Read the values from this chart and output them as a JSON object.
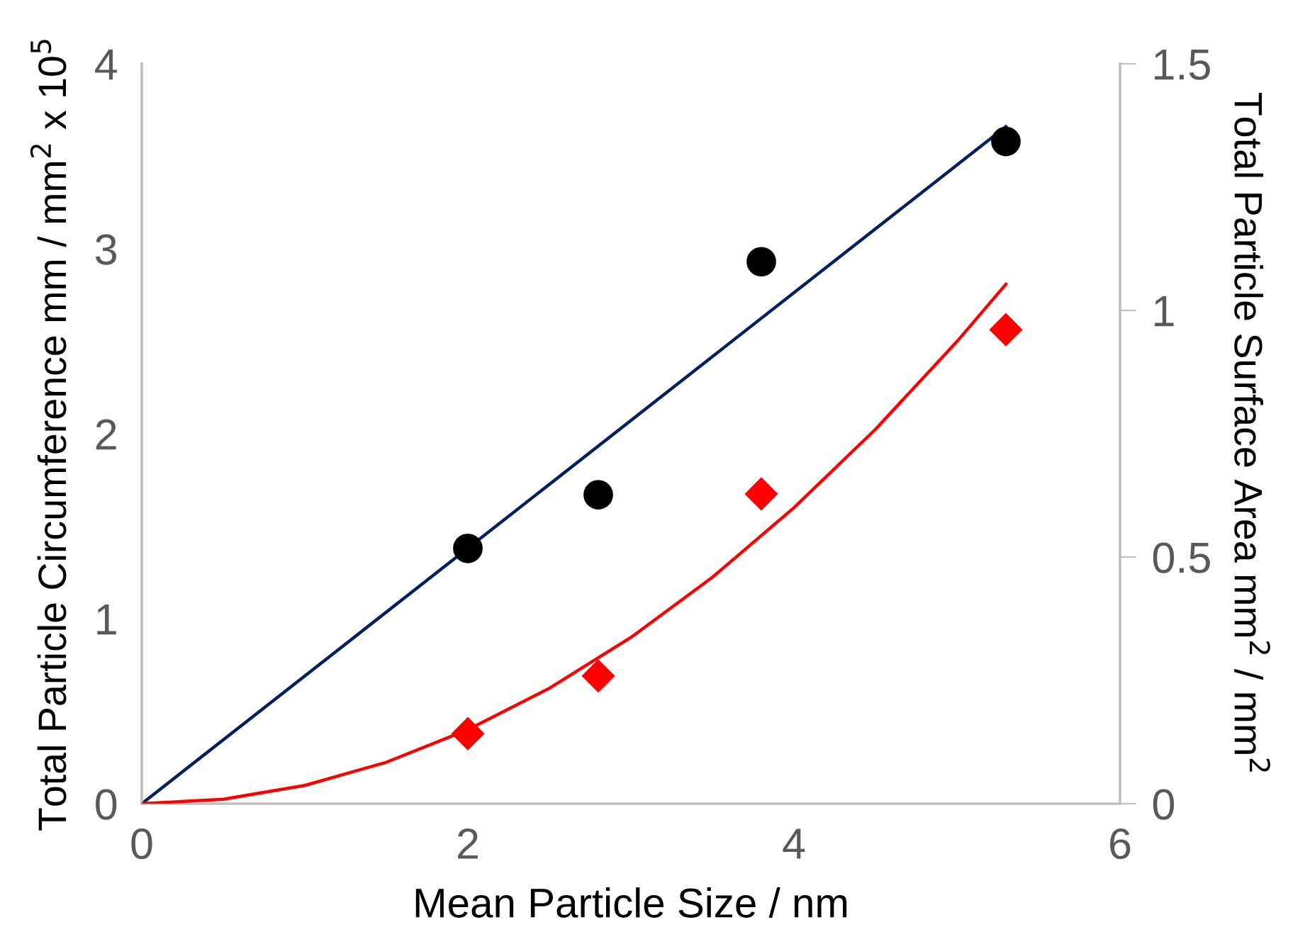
{
  "chart_data": {
    "type": "scatter",
    "xlabel": "Mean Particle Size / nm",
    "ylabel": "Total Particle Circumference mm / mm$^{2}$ x 10$^{5}$",
    "y2label": "Total Particle Surface Area mm$^{2}$ / mm$^{2}$",
    "xlim": [
      0,
      6
    ],
    "xticks": [
      0,
      2,
      4,
      6
    ],
    "ylim": [
      0,
      4
    ],
    "yticks": [
      0,
      1,
      2,
      3,
      4
    ],
    "y2lim": [
      0,
      1.5
    ],
    "y2ticks": [
      0,
      0.5,
      1,
      1.5
    ],
    "grid": false,
    "legend": false,
    "series": [
      {
        "type": "line",
        "color": "#002060",
        "x": [
          0,
          5.3
        ],
        "values": [
          0,
          3.66
        ],
        "marker": "none"
      },
      {
        "type": "line",
        "axis": "y2",
        "color": "#ff0000",
        "x": [
          0,
          0.5,
          1,
          1.5,
          2,
          2.5,
          3,
          3.5,
          4,
          4.5,
          5,
          5.3
        ],
        "values": [
          0,
          0.009,
          0.037,
          0.084,
          0.15,
          0.234,
          0.337,
          0.459,
          0.6,
          0.759,
          0.937,
          1.053
        ],
        "marker": "none"
      },
      {
        "color": "#000000",
        "x": [
          2,
          2.8,
          3.8,
          5.3
        ],
        "values": [
          1.38,
          1.67,
          2.93,
          3.58
        ],
        "marker": "circle"
      },
      {
        "axis": "y2",
        "color": "#ff0000",
        "x": [
          2,
          2.8,
          3.8,
          5.3
        ],
        "values": [
          0.142,
          0.259,
          0.628,
          0.961
        ],
        "marker": "diamond"
      }
    ]
  }
}
